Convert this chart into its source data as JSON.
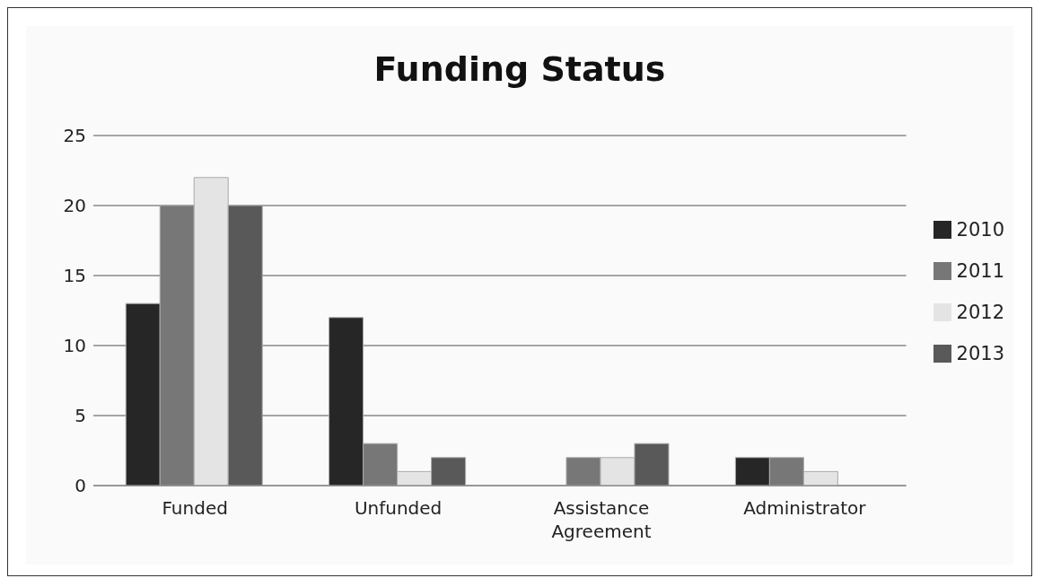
{
  "chart_data": {
    "type": "bar",
    "title": "Funding Status",
    "categories": [
      "Funded",
      "Unfunded",
      "Assistance Agreement",
      "Administrator"
    ],
    "series": [
      {
        "name": "2010",
        "color": "#262626",
        "values": [
          13,
          12,
          0,
          2
        ]
      },
      {
        "name": "2011",
        "color": "#777777",
        "values": [
          20,
          3,
          2,
          2
        ]
      },
      {
        "name": "2012",
        "color": "#e4e4e4",
        "values": [
          22,
          1,
          2,
          1
        ]
      },
      {
        "name": "2013",
        "color": "#595959",
        "values": [
          20,
          2,
          3,
          0
        ]
      }
    ],
    "ylim": [
      0,
      25
    ],
    "yticks": [
      0,
      5,
      10,
      15,
      20,
      25
    ],
    "grid": "y",
    "legend": "right"
  }
}
